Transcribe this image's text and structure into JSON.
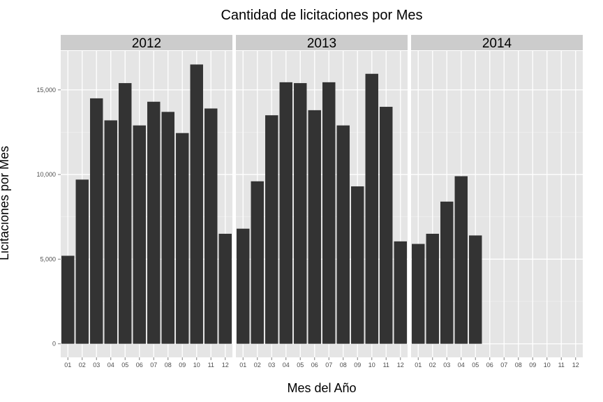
{
  "chart_data": {
    "type": "bar",
    "title": "Cantidad de licitaciones por Mes",
    "xlabel": "Mes del Año",
    "ylabel": "Licitaciones por Mes",
    "ylim": [
      -800,
      17300
    ],
    "yticks": [
      0,
      5000,
      10000,
      15000
    ],
    "ytick_labels": [
      "0",
      "5,000",
      "10,000",
      "15,000"
    ],
    "categories": [
      "01",
      "02",
      "03",
      "04",
      "05",
      "06",
      "07",
      "08",
      "09",
      "10",
      "11",
      "12"
    ],
    "facet_by": "year",
    "grid": true,
    "bar_color": "#333333",
    "panel_background": "#e5e5e5",
    "strip_background": "#cccccc",
    "grid_color": "#ffffff",
    "panels": [
      {
        "label": "2012",
        "values": [
          5200,
          9700,
          14500,
          13200,
          15400,
          12900,
          14300,
          13700,
          12450,
          16500,
          13900,
          6500
        ]
      },
      {
        "label": "2013",
        "values": [
          6800,
          9600,
          13500,
          15450,
          15400,
          13800,
          15450,
          12900,
          9300,
          15950,
          14000,
          6050
        ]
      },
      {
        "label": "2014",
        "values": [
          5900,
          6500,
          8400,
          9900,
          6400,
          null,
          null,
          null,
          null,
          null,
          null,
          null
        ]
      }
    ]
  }
}
